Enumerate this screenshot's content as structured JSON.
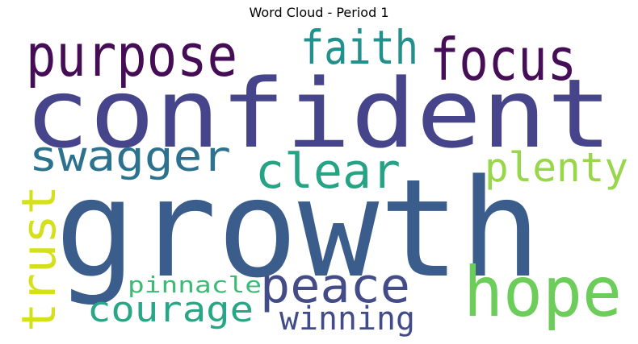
{
  "title": "Word Cloud - Period 1",
  "words": {
    "confident": {
      "text": "confident",
      "color": "#46448a"
    },
    "growth": {
      "text": "growth",
      "color": "#3b5d8c"
    },
    "purpose": {
      "text": "purpose",
      "color": "#440d56"
    },
    "faith": {
      "text": "faith",
      "color": "#22908c"
    },
    "focus": {
      "text": "focus",
      "color": "#450e57"
    },
    "swagger": {
      "text": "swagger",
      "color": "#2c718e"
    },
    "clear": {
      "text": "clear",
      "color": "#25a384"
    },
    "plenty": {
      "text": "plenty",
      "color": "#98d64a"
    },
    "trust": {
      "text": "trust",
      "color": "#d4e11a"
    },
    "hope": {
      "text": "hope",
      "color": "#6ccd5a"
    },
    "peace": {
      "text": "peace",
      "color": "#434c87"
    },
    "pinnacle": {
      "text": "pinnacle",
      "color": "#3bbb75"
    },
    "courage": {
      "text": "courage",
      "color": "#27a785"
    },
    "winning": {
      "text": "winning",
      "color": "#404b87"
    }
  }
}
